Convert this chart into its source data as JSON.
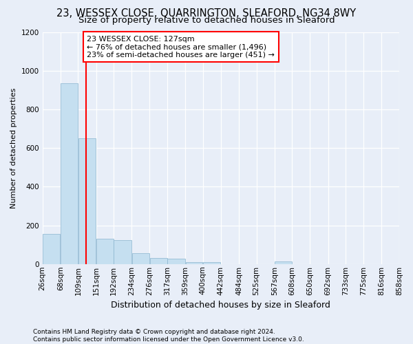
{
  "title": "23, WESSEX CLOSE, QUARRINGTON, SLEAFORD, NG34 8WY",
  "subtitle": "Size of property relative to detached houses in Sleaford",
  "xlabel": "Distribution of detached houses by size in Sleaford",
  "ylabel": "Number of detached properties",
  "bin_edges": [
    26,
    68,
    109,
    151,
    192,
    234,
    276,
    317,
    359,
    400,
    442,
    484,
    525,
    567,
    608,
    650,
    692,
    733,
    775,
    816,
    858
  ],
  "bar_heights": [
    155,
    935,
    650,
    130,
    125,
    55,
    30,
    28,
    10,
    10,
    0,
    0,
    0,
    15,
    0,
    0,
    0,
    0,
    0,
    0
  ],
  "bar_color": "#c5dff0",
  "bar_edgecolor": "#8ab4cf",
  "property_size": 127,
  "annotation_text": "23 WESSEX CLOSE: 127sqm\n← 76% of detached houses are smaller (1,496)\n23% of semi-detached houses are larger (451) →",
  "annotation_box_facecolor": "white",
  "annotation_box_edgecolor": "red",
  "vline_color": "red",
  "ylim": [
    0,
    1200
  ],
  "yticks": [
    0,
    200,
    400,
    600,
    800,
    1000,
    1200
  ],
  "footer": "Contains HM Land Registry data © Crown copyright and database right 2024.\nContains public sector information licensed under the Open Government Licence v3.0.",
  "bg_color": "#e8eef8",
  "grid_color": "white",
  "title_fontsize": 10.5,
  "subtitle_fontsize": 9.5,
  "ylabel_fontsize": 8,
  "xlabel_fontsize": 9,
  "tick_fontsize": 7.5,
  "annotation_fontsize": 8,
  "footer_fontsize": 6.5
}
